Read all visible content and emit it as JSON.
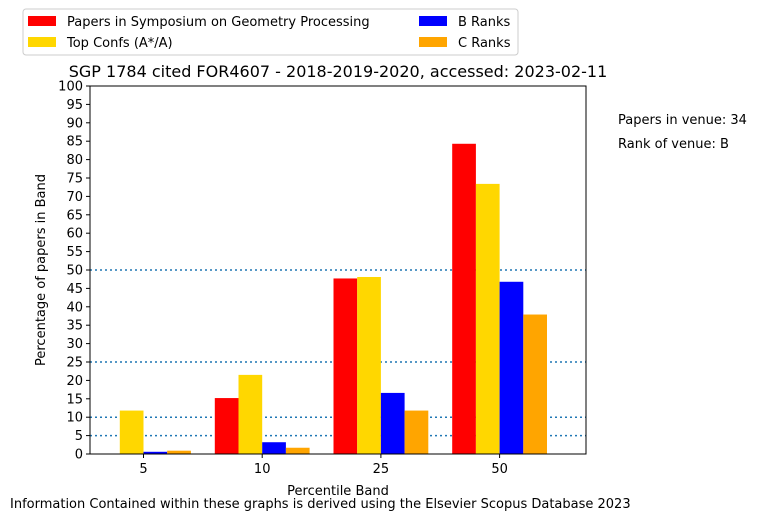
{
  "chart_data": {
    "type": "bar",
    "title": "SGP 1784 cited FOR4607 - 2018-2019-2020, accessed: 2023-02-11",
    "xlabel": "Percentile Band",
    "ylabel": "Percentage of papers in Band",
    "categories": [
      "5",
      "10",
      "25",
      "50"
    ],
    "ylim": [
      0,
      100
    ],
    "yticks": [
      0,
      5,
      10,
      15,
      20,
      25,
      30,
      35,
      40,
      45,
      50,
      55,
      60,
      65,
      70,
      75,
      80,
      85,
      90,
      95,
      100
    ],
    "reference_lines": [
      5,
      10,
      25,
      50
    ],
    "legend_position": "top-left, outside plot, two columns",
    "grid": false,
    "series": [
      {
        "name": "Papers in Symposium on Geometry Processing",
        "color": "#ff0000",
        "values": [
          0,
          15.2,
          47.7,
          84.3
        ]
      },
      {
        "name": "Top Confs (A*/A)",
        "color": "#ffd700",
        "values": [
          11.8,
          21.5,
          48.1,
          73.4
        ]
      },
      {
        "name": "B Ranks",
        "color": "#0000ff",
        "values": [
          0.6,
          3.2,
          16.6,
          46.8
        ]
      },
      {
        "name": "C Ranks",
        "color": "#ffa500",
        "values": [
          0.9,
          1.7,
          11.8,
          37.9
        ]
      }
    ]
  },
  "annotations": {
    "papers_in_venue": "Papers in venue: 34",
    "rank_of_venue": "Rank of venue: B"
  },
  "footer": "Information Contained within these graphs is derived using the Elsevier Scopus Database 2023",
  "colors": {
    "reference_line": "#1f77b4"
  }
}
